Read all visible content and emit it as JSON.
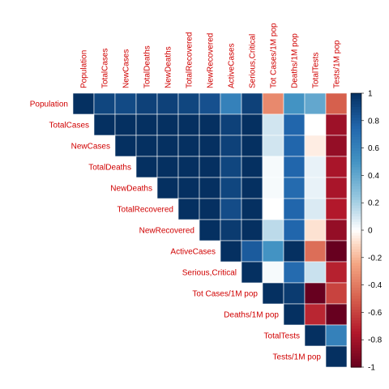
{
  "chart_data": {
    "type": "heatmap",
    "layout": "upper-triangle",
    "variables": [
      "Population",
      "TotalCases",
      "NewCases",
      "TotalDeaths",
      "NewDeaths",
      "TotalRecovered",
      "NewRecovered",
      "ActiveCases",
      "Serious,Critical",
      "Tot Cases/1M pop",
      "Deaths/1M pop",
      "TotalTests",
      "Tests/1M pop"
    ],
    "label_color": "#d00000",
    "colorbar": {
      "range": [
        -1,
        1
      ],
      "ticks": [
        "1",
        "0.8",
        "0.6",
        "0.4",
        "0.2",
        "0",
        "-0.2",
        "-0.4",
        "-0.6",
        "-0.8",
        "-1"
      ],
      "placement": "right"
    },
    "colors": {
      "positive": "#053061",
      "neutral": "#ffffff",
      "negative": "#67001f"
    },
    "matrix": [
      [
        1,
        0.9,
        0.88,
        0.92,
        0.92,
        0.9,
        0.85,
        0.6,
        0.92,
        -0.35,
        0.5,
        0.4,
        -0.5
      ],
      [
        null,
        1,
        1,
        1,
        1,
        1,
        1,
        0.92,
        1,
        0.1,
        0.75,
        0.0,
        -0.82
      ],
      [
        null,
        null,
        1,
        1,
        1,
        1,
        1,
        0.92,
        1,
        0.1,
        0.75,
        -0.05,
        -0.85
      ],
      [
        null,
        null,
        null,
        1,
        1,
        1,
        1,
        0.9,
        1,
        0.02,
        0.75,
        0.05,
        -0.78
      ],
      [
        null,
        null,
        null,
        null,
        1,
        1,
        1,
        0.9,
        1,
        0.02,
        0.72,
        0.05,
        -0.78
      ],
      [
        null,
        null,
        null,
        null,
        null,
        1,
        1,
        0.87,
        1,
        0.0,
        0.75,
        0.08,
        -0.75
      ],
      [
        null,
        null,
        null,
        null,
        null,
        null,
        1,
        0.95,
        1,
        0.15,
        0.75,
        -0.08,
        -0.85
      ],
      [
        null,
        null,
        null,
        null,
        null,
        null,
        null,
        1,
        0.8,
        0.5,
        1,
        -0.45,
        -1
      ],
      [
        null,
        null,
        null,
        null,
        null,
        null,
        null,
        null,
        1,
        0.02,
        0.72,
        0.12,
        -0.72
      ],
      [
        null,
        null,
        null,
        null,
        null,
        null,
        null,
        null,
        null,
        1,
        0.95,
        -1,
        -0.6
      ],
      [
        null,
        null,
        null,
        null,
        null,
        null,
        null,
        null,
        null,
        null,
        1,
        -0.7,
        -1
      ],
      [
        null,
        null,
        null,
        null,
        null,
        null,
        null,
        null,
        null,
        null,
        null,
        1,
        0.6
      ],
      [
        null,
        null,
        null,
        null,
        null,
        null,
        null,
        null,
        null,
        null,
        null,
        null,
        1
      ]
    ]
  }
}
